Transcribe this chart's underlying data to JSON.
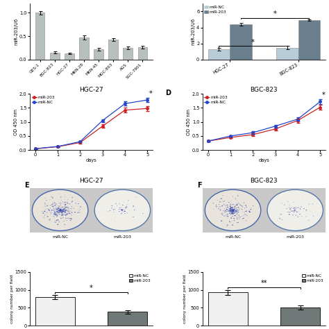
{
  "panel_A": {
    "categories": [
      "GES-1",
      "BGC-823",
      "HGC-27",
      "MKN-28",
      "MKN-45",
      "MGC-803",
      "AGS",
      "SGC-7901"
    ],
    "values": [
      1.0,
      0.15,
      0.13,
      0.47,
      0.22,
      0.43,
      0.25,
      0.27
    ],
    "errors": [
      0.04,
      0.02,
      0.02,
      0.04,
      0.03,
      0.03,
      0.03,
      0.03
    ],
    "bar_color": "#b8bfbf",
    "ylabel": "miR-203/U6",
    "ylim": [
      0,
      1.2
    ],
    "yticks": [
      0.0,
      0.5,
      1.0
    ]
  },
  "panel_B": {
    "categories": [
      "HGC-27",
      "BGC-823"
    ],
    "nc_values": [
      1.3,
      1.5
    ],
    "mir_values": [
      4.4,
      4.9
    ],
    "nc_errors": [
      0.18,
      0.22
    ],
    "mir_errors": [
      0.15,
      0.12
    ],
    "nc_color": "#b8ccd8",
    "mir_color": "#6a7f8e",
    "ylabel": "miR-203/U6",
    "ylim": [
      0,
      7
    ],
    "yticks": [
      0,
      2,
      4,
      6
    ],
    "legend_labels": [
      "miR-NC",
      "miR-203"
    ]
  },
  "panel_C": {
    "title": "HGC-27",
    "days": [
      0,
      1,
      2,
      3,
      4,
      5
    ],
    "mir203": [
      0.05,
      0.12,
      0.27,
      0.85,
      1.42,
      1.48
    ],
    "mirNC": [
      0.05,
      0.13,
      0.3,
      1.05,
      1.65,
      1.78
    ],
    "mir203_err": [
      0.01,
      0.02,
      0.03,
      0.06,
      0.08,
      0.09
    ],
    "mirNC_err": [
      0.01,
      0.02,
      0.03,
      0.05,
      0.07,
      0.08
    ],
    "mir203_color": "#cc2222",
    "mirNC_color": "#2244cc",
    "ylabel": "OD 450 nm",
    "xlabel": "days",
    "ylim": [
      0.0,
      2.0
    ],
    "yticks": [
      0.0,
      0.5,
      1.0,
      1.5,
      2.0
    ]
  },
  "panel_D": {
    "title": "BGC-823",
    "days": [
      0,
      1,
      2,
      3,
      4,
      5
    ],
    "mir203": [
      0.32,
      0.45,
      0.55,
      0.75,
      1.05,
      1.52
    ],
    "mirNC": [
      0.32,
      0.5,
      0.62,
      0.85,
      1.1,
      1.72
    ],
    "mir203_err": [
      0.02,
      0.03,
      0.04,
      0.05,
      0.07,
      0.08
    ],
    "mirNC_err": [
      0.02,
      0.03,
      0.04,
      0.05,
      0.07,
      0.08
    ],
    "mir203_color": "#cc2222",
    "mirNC_color": "#2244cc",
    "ylabel": "OD 450 nm",
    "xlabel": "days",
    "ylim": [
      0.0,
      2.0
    ],
    "yticks": [
      0.0,
      0.5,
      1.0,
      1.5,
      2.0
    ]
  },
  "panel_G": {
    "nc_value": 800,
    "mir_value": 385,
    "nc_err": 65,
    "mir_err": 48,
    "nc_color": "#f0f0f0",
    "mir_color": "#707878",
    "ylabel": "colony number per field",
    "ylim": [
      0,
      1500
    ],
    "yticks": [
      0,
      500,
      1000,
      1500
    ],
    "sig": "*"
  },
  "panel_H": {
    "nc_value": 930,
    "mir_value": 510,
    "nc_err": 72,
    "mir_err": 58,
    "nc_color": "#f0f0f0",
    "mir_color": "#707878",
    "ylabel": "colony number per field",
    "ylim": [
      0,
      1500
    ],
    "yticks": [
      0,
      500,
      1000,
      1500
    ],
    "sig": "**"
  }
}
